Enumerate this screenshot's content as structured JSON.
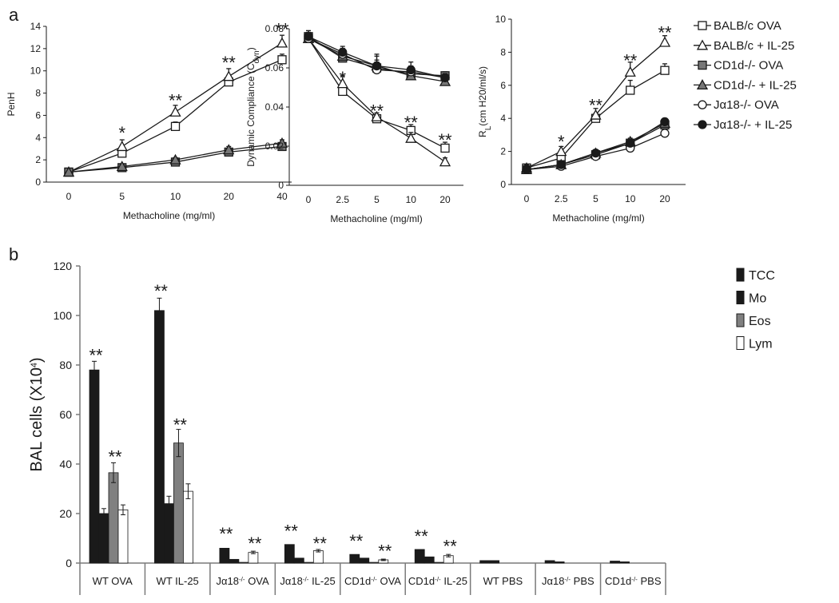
{
  "panel_labels": [
    "a",
    "b"
  ],
  "chart_data": [
    {
      "type": "line",
      "panel": "a1",
      "ylabel": "PenH",
      "xlabel": "Methacholine (mg/ml)",
      "categories": [
        "0",
        "5",
        "10",
        "20",
        "40"
      ],
      "ylim": [
        0,
        14
      ],
      "yticks": [
        "0",
        "2",
        "4",
        "6",
        "8",
        "10",
        "12",
        "14"
      ],
      "series": [
        {
          "name": "BALB/c OVA",
          "values": [
            0.9,
            2.6,
            5.0,
            9.0,
            11.0
          ],
          "err": [
            0.2,
            0.4,
            0.4,
            0.5,
            0.5
          ]
        },
        {
          "name": "BALB/c + IL-25",
          "values": [
            0.9,
            3.2,
            6.3,
            9.5,
            12.5
          ],
          "err": [
            0.2,
            0.6,
            0.6,
            0.7,
            0.7
          ]
        },
        {
          "name": "CD1d-/- OVA",
          "values": [
            0.9,
            1.3,
            1.8,
            2.7,
            3.2
          ],
          "err": [
            0.1,
            0.2,
            0.2,
            0.3,
            0.3
          ]
        },
        {
          "name": "CD1d-/- + IL-25",
          "values": [
            0.9,
            1.4,
            2.0,
            2.9,
            3.5
          ],
          "err": [
            0.1,
            0.2,
            0.2,
            0.3,
            0.3
          ]
        }
      ],
      "annotations": [
        {
          "x": "5",
          "y": 4.6,
          "text": "*"
        },
        {
          "x": "10",
          "y": 7.5,
          "text": "**"
        },
        {
          "x": "20",
          "y": 10.9,
          "text": "**"
        },
        {
          "x": "40",
          "y": 13.9,
          "text": "**"
        }
      ]
    },
    {
      "type": "line",
      "panel": "a2",
      "ylabel": "Dynamic Compliance (C",
      "ylabel_sub": "dyn",
      "ylabel_end": ")",
      "xlabel": "Methacholine (mg/ml)",
      "categories": [
        "0",
        "2.5",
        "5",
        "10",
        "20"
      ],
      "ylim": [
        0,
        0.08
      ],
      "yticks": [
        "0",
        "0.02",
        "0.04",
        "0.06",
        "0.08"
      ],
      "series": [
        {
          "name": "BALB/c OVA",
          "values": [
            0.075,
            0.048,
            0.034,
            0.028,
            0.019
          ],
          "err": [
            0.003,
            0.003,
            0.002,
            0.003,
            0.003
          ]
        },
        {
          "name": "BALB/c + IL-25",
          "values": [
            0.075,
            0.052,
            0.035,
            0.024,
            0.012
          ],
          "err": [
            0.003,
            0.004,
            0.002,
            0.003,
            0.002
          ]
        },
        {
          "name": "CD1d-/- OVA",
          "values": [
            0.076,
            0.065,
            0.06,
            0.057,
            0.056
          ],
          "err": [
            0.003,
            0.003,
            0.004,
            0.003,
            0.002
          ]
        },
        {
          "name": "CD1d-/- + IL-25",
          "values": [
            0.075,
            0.066,
            0.061,
            0.056,
            0.053
          ],
          "err": [
            0.003,
            0.003,
            0.005,
            0.003,
            0.002
          ]
        },
        {
          "name": "Jα18-/- OVA",
          "values": [
            0.075,
            0.067,
            0.059,
            0.058,
            0.055
          ],
          "err": [
            0.003,
            0.003,
            0.004,
            0.003,
            0.002
          ]
        },
        {
          "name": "Jα18-/- + IL-25",
          "values": [
            0.076,
            0.068,
            0.061,
            0.059,
            0.055
          ],
          "err": [
            0.003,
            0.003,
            0.006,
            0.004,
            0.002
          ]
        }
      ],
      "annotations": [
        {
          "x": "2.5",
          "y": 0.056,
          "text": "*"
        },
        {
          "x": "5",
          "y": 0.039,
          "text": "**"
        },
        {
          "x": "10",
          "y": 0.033,
          "text": "**"
        },
        {
          "x": "20",
          "y": 0.024,
          "text": "**"
        }
      ]
    },
    {
      "type": "line",
      "panel": "a3",
      "ylabel": "R",
      "ylabel_sub": "L",
      "ylabel_end": "(cm H20/ml/s)",
      "xlabel": "Methacholine (mg/ml)",
      "categories": [
        "0",
        "2.5",
        "5",
        "10",
        "20"
      ],
      "ylim": [
        0,
        10
      ],
      "yticks": [
        "0",
        "2",
        "4",
        "6",
        "8",
        "10"
      ],
      "series": [
        {
          "name": "BALB/c OVA",
          "values": [
            1.0,
            1.6,
            4.0,
            5.7,
            6.9
          ],
          "err": [
            0.2,
            0.3,
            0.3,
            0.6,
            0.4
          ]
        },
        {
          "name": "BALB/c + IL-25",
          "values": [
            1.0,
            2.0,
            4.2,
            6.8,
            8.6
          ],
          "err": [
            0.2,
            0.3,
            0.4,
            0.6,
            0.4
          ]
        },
        {
          "name": "CD1d-/- OVA",
          "values": [
            0.9,
            1.2,
            1.8,
            2.5,
            3.6
          ],
          "err": [
            0.1,
            0.1,
            0.1,
            0.2,
            0.2
          ]
        },
        {
          "name": "CD1d-/- + IL-25",
          "values": [
            0.9,
            1.2,
            1.9,
            2.6,
            3.7
          ],
          "err": [
            0.1,
            0.1,
            0.1,
            0.2,
            0.2
          ]
        },
        {
          "name": "Jα18-/- OVA",
          "values": [
            0.9,
            1.1,
            1.7,
            2.2,
            3.1
          ],
          "err": [
            0.1,
            0.1,
            0.1,
            0.2,
            0.2
          ]
        },
        {
          "name": "Jα18-/- + IL-25",
          "values": [
            0.9,
            1.2,
            1.9,
            2.5,
            3.8
          ],
          "err": [
            0.1,
            0.1,
            0.1,
            0.2,
            0.2
          ]
        }
      ],
      "annotations": [
        {
          "x": "2.5",
          "y": 2.7,
          "text": "*"
        },
        {
          "x": "5",
          "y": 4.9,
          "text": "**"
        },
        {
          "x": "10",
          "y": 7.6,
          "text": "**"
        },
        {
          "x": "20",
          "y": 9.3,
          "text": "**"
        }
      ]
    },
    {
      "type": "bar",
      "panel": "b",
      "ylabel": "BAL cells (X10",
      "ylabel_sup": "4",
      "ylabel_end": ")",
      "ylim": [
        0,
        120
      ],
      "yticks": [
        "0",
        "20",
        "40",
        "60",
        "80",
        "100",
        "120"
      ],
      "groups": [
        {
          "pre": "WT",
          "sup": "",
          "post": "OVA"
        },
        {
          "pre": "WT",
          "sup": "",
          "post": "IL-25"
        },
        {
          "pre": "Jα18",
          "sup": "-/-",
          "post": "OVA"
        },
        {
          "pre": "Jα18",
          "sup": "-/-",
          "post": "IL-25"
        },
        {
          "pre": "CD1d",
          "sup": "-/-",
          "post": "OVA"
        },
        {
          "pre": "CD1d",
          "sup": "-/-",
          "post": "IL-25"
        },
        {
          "pre": "WT",
          "sup": "",
          "post": "PBS"
        },
        {
          "pre": "Jα18",
          "sup": "-/-",
          "post": "PBS"
        },
        {
          "pre": "CD1d",
          "sup": "-/-",
          "post": "PBS"
        }
      ],
      "series": [
        {
          "name": "TCC",
          "color": "#1a1a1a",
          "values": [
            78,
            102,
            6,
            7.5,
            3.5,
            5.5,
            1,
            1,
            0.8
          ],
          "err": [
            3.5,
            5,
            0,
            0,
            0,
            0,
            0,
            0,
            0
          ]
        },
        {
          "name": "Mo",
          "color": "#1a1a1a",
          "values": [
            20,
            24,
            1.5,
            2,
            2,
            2.5,
            1,
            0.5,
            0.5
          ],
          "err": [
            2,
            3,
            0,
            0,
            0,
            0,
            0,
            0,
            0
          ]
        },
        {
          "name": "Eos",
          "color": "#808080",
          "values": [
            36.5,
            48.5,
            0.3,
            0.3,
            0.3,
            0.3,
            0,
            0,
            0
          ],
          "err": [
            4,
            5.5,
            0,
            0,
            0,
            0,
            0,
            0,
            0
          ]
        },
        {
          "name": "Lym",
          "color": "#ffffff",
          "values": [
            21.5,
            29,
            4.3,
            5,
            1.3,
            3,
            0,
            0,
            0
          ],
          "err": [
            2,
            3,
            0.5,
            0.5,
            0.3,
            0.5,
            0,
            0,
            0
          ]
        }
      ],
      "annotations": [
        {
          "group": 0,
          "series": 0,
          "y": 84,
          "text": "**"
        },
        {
          "group": 0,
          "series": 2,
          "y": 43,
          "text": "**"
        },
        {
          "group": 1,
          "series": 0,
          "y": 110,
          "text": "**"
        },
        {
          "group": 1,
          "series": 2,
          "y": 56,
          "text": "**"
        },
        {
          "group": 2,
          "series": 0,
          "y": 12,
          "text": "**"
        },
        {
          "group": 2,
          "series": 3,
          "y": 8,
          "text": "**"
        },
        {
          "group": 3,
          "series": 0,
          "y": 13,
          "text": "**"
        },
        {
          "group": 3,
          "series": 3,
          "y": 8,
          "text": "**"
        },
        {
          "group": 4,
          "series": 0,
          "y": 9,
          "text": "**"
        },
        {
          "group": 4,
          "series": 3,
          "y": 5,
          "text": "**"
        },
        {
          "group": 5,
          "series": 0,
          "y": 11,
          "text": "**"
        },
        {
          "group": 5,
          "series": 3,
          "y": 7,
          "text": "**"
        }
      ]
    }
  ],
  "legend_a": [
    "BALB/c OVA",
    "BALB/c + IL-25",
    "CD1d-/- OVA",
    "CD1d-/- + IL-25",
    "Jα18-/- OVA",
    "Jα18-/- + IL-25"
  ],
  "legend_b": [
    "TCC",
    "Mo",
    "Eos",
    "Lym"
  ]
}
